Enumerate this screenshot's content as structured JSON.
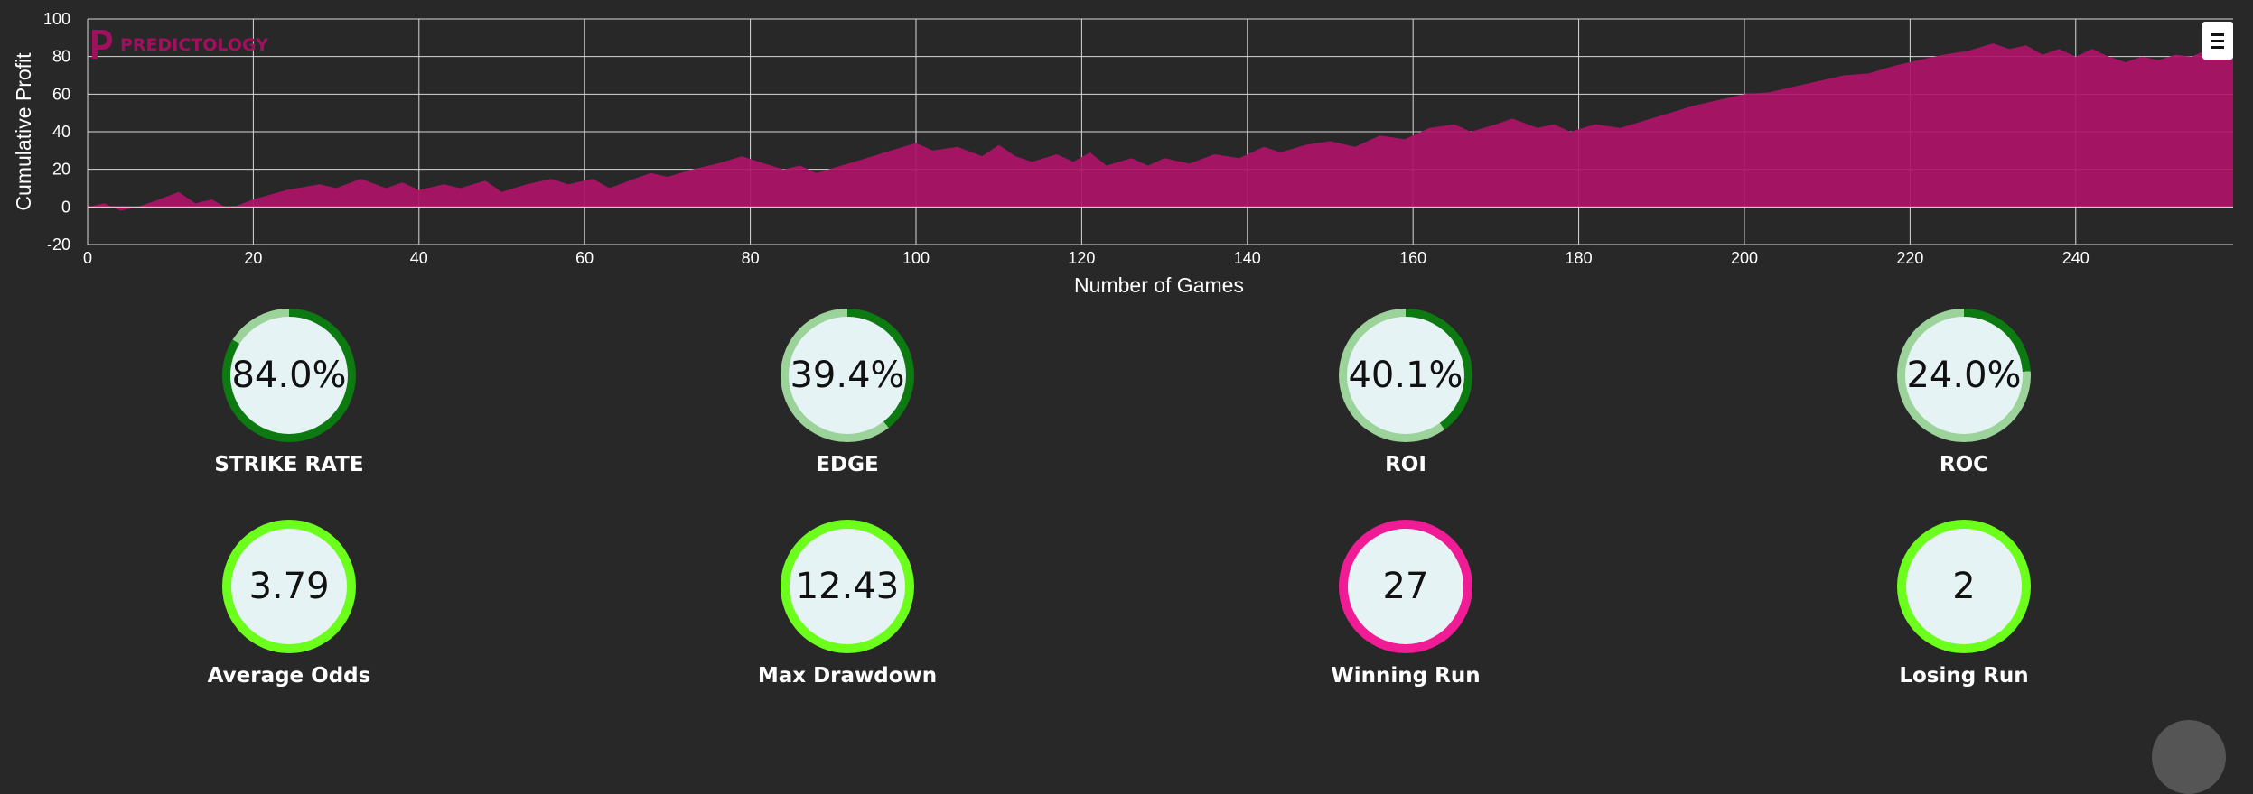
{
  "chart_data": {
    "type": "area",
    "xlabel": "Number of Games",
    "ylabel": "Cumulative Profit",
    "xlim": [
      0,
      259
    ],
    "ylim": [
      -20,
      100
    ],
    "xticks": [
      0,
      20,
      40,
      60,
      80,
      100,
      120,
      140,
      160,
      180,
      200,
      220,
      240
    ],
    "yticks": [
      -20,
      0,
      20,
      40,
      60,
      80,
      100
    ],
    "grid": true,
    "series": [
      {
        "color": "#ae1467",
        "points": [
          [
            0,
            0
          ],
          [
            2,
            2
          ],
          [
            4,
            -2
          ],
          [
            6,
            0
          ],
          [
            8,
            3
          ],
          [
            11,
            8
          ],
          [
            13,
            2
          ],
          [
            15,
            4
          ],
          [
            17,
            -1
          ],
          [
            20,
            4
          ],
          [
            24,
            9
          ],
          [
            28,
            12
          ],
          [
            30,
            10
          ],
          [
            33,
            15
          ],
          [
            36,
            10
          ],
          [
            38,
            13
          ],
          [
            40,
            9
          ],
          [
            43,
            12
          ],
          [
            45,
            10
          ],
          [
            48,
            14
          ],
          [
            50,
            8
          ],
          [
            53,
            12
          ],
          [
            56,
            15
          ],
          [
            58,
            12
          ],
          [
            61,
            15
          ],
          [
            63,
            10
          ],
          [
            66,
            15
          ],
          [
            68,
            18
          ],
          [
            70,
            16
          ],
          [
            73,
            20
          ],
          [
            76,
            23
          ],
          [
            79,
            27
          ],
          [
            81,
            24
          ],
          [
            84,
            20
          ],
          [
            86,
            22
          ],
          [
            88,
            18
          ],
          [
            91,
            22
          ],
          [
            94,
            26
          ],
          [
            97,
            30
          ],
          [
            100,
            34
          ],
          [
            102,
            30
          ],
          [
            105,
            32
          ],
          [
            108,
            27
          ],
          [
            110,
            33
          ],
          [
            112,
            27
          ],
          [
            114,
            24
          ],
          [
            117,
            28
          ],
          [
            119,
            24
          ],
          [
            121,
            29
          ],
          [
            123,
            22
          ],
          [
            126,
            26
          ],
          [
            128,
            22
          ],
          [
            130,
            26
          ],
          [
            133,
            23
          ],
          [
            136,
            28
          ],
          [
            139,
            26
          ],
          [
            142,
            32
          ],
          [
            144,
            29
          ],
          [
            147,
            33
          ],
          [
            150,
            35
          ],
          [
            153,
            32
          ],
          [
            156,
            38
          ],
          [
            159,
            36
          ],
          [
            162,
            42
          ],
          [
            165,
            44
          ],
          [
            167,
            40
          ],
          [
            170,
            44
          ],
          [
            172,
            47
          ],
          [
            175,
            42
          ],
          [
            177,
            44
          ],
          [
            179,
            40
          ],
          [
            182,
            44
          ],
          [
            185,
            42
          ],
          [
            188,
            46
          ],
          [
            191,
            50
          ],
          [
            194,
            54
          ],
          [
            197,
            57
          ],
          [
            200,
            60
          ],
          [
            203,
            61
          ],
          [
            206,
            64
          ],
          [
            209,
            67
          ],
          [
            212,
            70
          ],
          [
            215,
            71
          ],
          [
            218,
            75
          ],
          [
            221,
            78
          ],
          [
            224,
            81
          ],
          [
            227,
            83
          ],
          [
            230,
            87
          ],
          [
            232,
            84
          ],
          [
            234,
            86
          ],
          [
            236,
            81
          ],
          [
            238,
            84
          ],
          [
            240,
            80
          ],
          [
            242,
            84
          ],
          [
            244,
            80
          ],
          [
            246,
            77
          ],
          [
            248,
            80
          ],
          [
            250,
            78
          ],
          [
            252,
            81
          ],
          [
            254,
            80
          ],
          [
            256,
            84
          ],
          [
            258,
            85
          ],
          [
            259,
            85
          ]
        ]
      }
    ]
  },
  "logo": {
    "text": "PREDICTOLOGY"
  },
  "menu": {
    "icon": "hamburger-icon"
  },
  "colors": {
    "dark_green": "#0c7a10",
    "light_green": "#9bd39b",
    "lime": "#6dff1c",
    "magenta": "#f01c95",
    "circle_fill": "#e6f3f5"
  },
  "stats_row1": [
    {
      "value": "84.0%",
      "label": "STRIKE RATE",
      "percent": 84.0
    },
    {
      "value": "39.4%",
      "label": "EDGE",
      "percent": 39.4
    },
    {
      "value": "40.1%",
      "label": "ROI",
      "percent": 40.1
    },
    {
      "value": "24.0%",
      "label": "ROC",
      "percent": 24.0
    }
  ],
  "stats_row2": [
    {
      "value": "3.79",
      "label": "Average Odds",
      "color": "#6dff1c"
    },
    {
      "value": "12.43",
      "label": "Max Drawdown",
      "color": "#6dff1c"
    },
    {
      "value": "27",
      "label": "Winning Run",
      "color": "#f01c95"
    },
    {
      "value": "2",
      "label": "Losing Run",
      "color": "#6dff1c"
    }
  ]
}
